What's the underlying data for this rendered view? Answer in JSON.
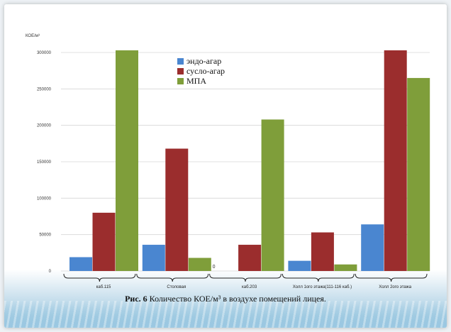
{
  "chart_data": {
    "type": "bar",
    "ylabel": "КОЕ/м³",
    "ylim": [
      0,
      300000
    ],
    "yticks": [
      0,
      50000,
      100000,
      150000,
      200000,
      250000,
      300000
    ],
    "categories": [
      "каб.115",
      "Столовая",
      "каб.203",
      "Холл 1ого этажа(111-116 каб.)",
      "Холл 2ого этажа"
    ],
    "series": [
      {
        "name": "эндо-агар",
        "color": "#4a86d0",
        "values": [
          19000,
          36000,
          0,
          14000,
          64000
        ]
      },
      {
        "name": "сусло-агар",
        "color": "#9b2d2d",
        "values": [
          80000,
          168000,
          36000,
          53000,
          303000
        ]
      },
      {
        "name": "МПА",
        "color": "#7f9e3a",
        "values": [
          303000,
          18000,
          208000,
          9000,
          265000
        ]
      }
    ],
    "zero_labels": [
      {
        "category": 2,
        "text": "0"
      }
    ],
    "legend_position": "top-center",
    "grid": true
  },
  "caption": {
    "figure_label": "Рис. 6",
    "text": " Количество КОЕ/м³  в воздухе помещений лицея."
  }
}
